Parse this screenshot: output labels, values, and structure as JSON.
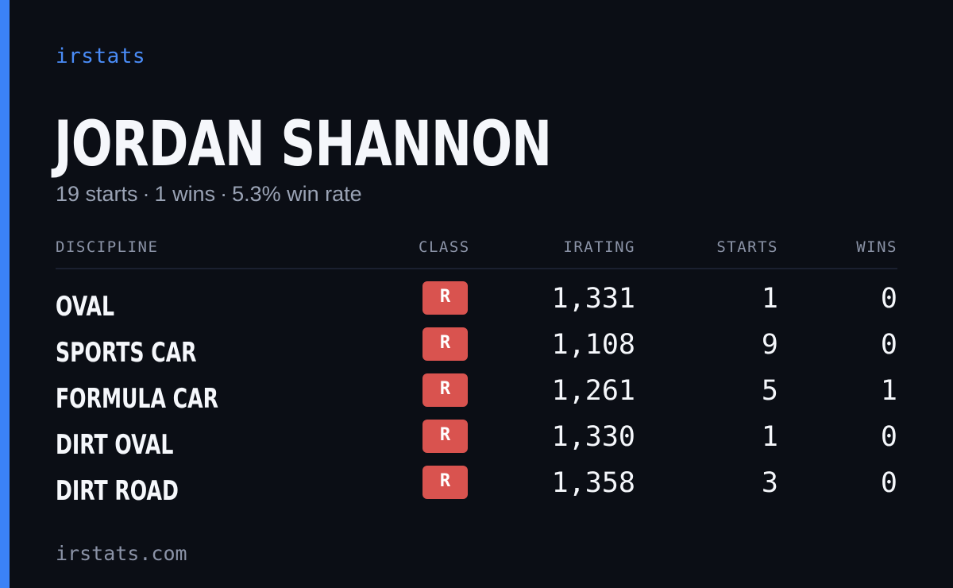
{
  "brand": "irstats",
  "driver": {
    "name": "JORDAN SHANNON",
    "summary": {
      "starts": "19 starts",
      "wins": "1 wins",
      "win_rate": "5.3% win rate",
      "separator": "·"
    }
  },
  "table": {
    "headers": {
      "discipline": "DISCIPLINE",
      "class": "CLASS",
      "irating": "IRATING",
      "starts": "STARTS",
      "wins": "WINS"
    },
    "rows": [
      {
        "discipline": "OVAL",
        "class": "R",
        "irating": "1,331",
        "starts": "1",
        "wins": "0"
      },
      {
        "discipline": "SPORTS CAR",
        "class": "R",
        "irating": "1,108",
        "starts": "9",
        "wins": "0"
      },
      {
        "discipline": "FORMULA CAR",
        "class": "R",
        "irating": "1,261",
        "starts": "5",
        "wins": "1"
      },
      {
        "discipline": "DIRT OVAL",
        "class": "R",
        "irating": "1,330",
        "starts": "1",
        "wins": "0"
      },
      {
        "discipline": "DIRT ROAD",
        "class": "R",
        "irating": "1,358",
        "starts": "3",
        "wins": "0"
      }
    ]
  },
  "footer": "irstats.com",
  "colors": {
    "background": "#0b0e15",
    "accent": "#3b82f6",
    "class_r_badge": "#d9534f"
  }
}
